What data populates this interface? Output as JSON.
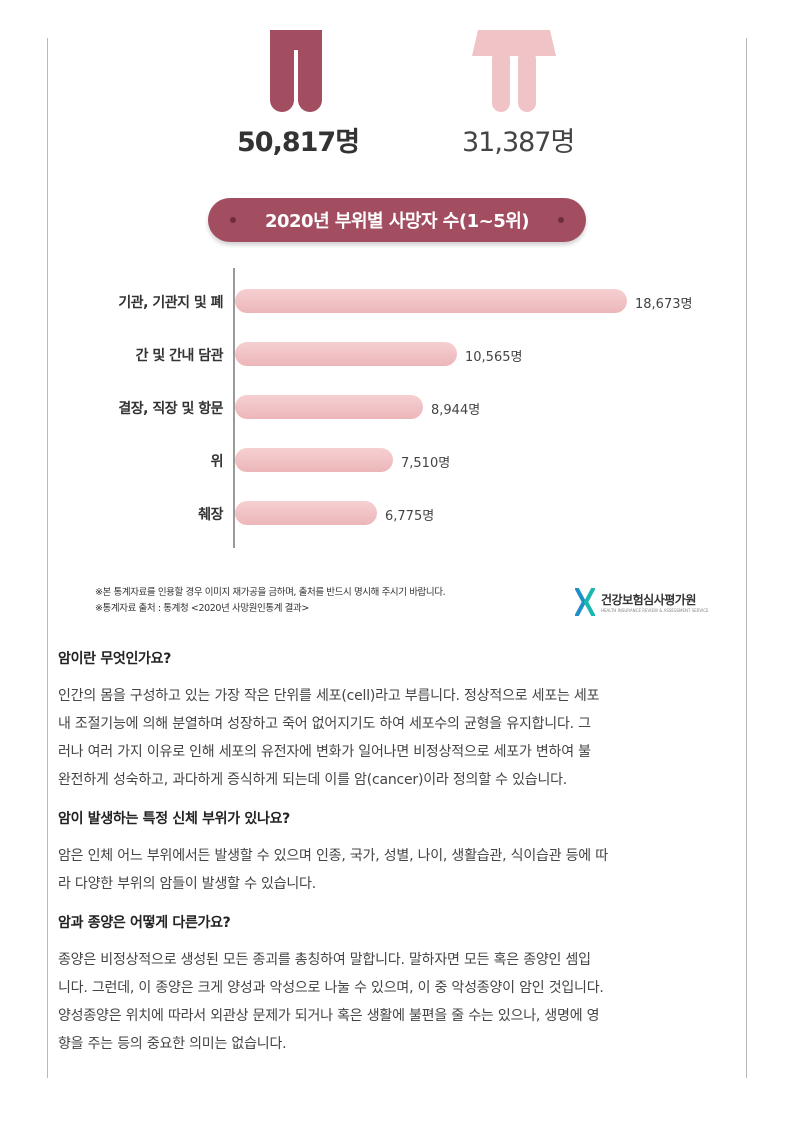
{
  "figure": {
    "male_count": "50,817명",
    "female_count": "31,387명",
    "title": "2020년 부위별 사망자 수(1~5위)",
    "colors": {
      "male": "#a24d60",
      "female": "#f0c3c7",
      "bar": "#efbfc2"
    },
    "notes": [
      "※본 통계자료를 인용할 경우 이미지 재가공을 금하며, 출처를 반드시 명시해 주시기 바랍니다.",
      "※통계자료 출처 : 통계청 <2020년 사망원인통계 결과>"
    ],
    "logo": {
      "name": "건강보험심사평가원",
      "sub": "HEALTH INSURANCE REVIEW & ASSESSMENT SERVICE"
    }
  },
  "chart_data": {
    "type": "bar",
    "orientation": "horizontal",
    "title": "2020년 부위별 사망자 수(1~5위)",
    "categories": [
      "기관, 기관지 및 폐",
      "간 및 간내 담관",
      "결장, 직장 및 항문",
      "위",
      "췌장"
    ],
    "values": [
      18673,
      10565,
      8944,
      7510,
      6775
    ],
    "value_labels": [
      "18,673명",
      "10,565명",
      "8,944명",
      "7,510명",
      "6,775명"
    ],
    "xlim": [
      0,
      20000
    ],
    "grid": false
  },
  "sections": [
    {
      "heading": "암이란 무엇인가요?",
      "lines": [
        "인간의 몸을 구성하고 있는 가장 작은 단위를 세포(cell)라고 부릅니다. 정상적으로 세포는 세포",
        "내 조절기능에 의해 분열하며 성장하고 죽어 없어지기도 하여 세포수의 균형을 유지합니다. 그",
        "러나 여러 가지 이유로 인해 세포의 유전자에 변화가 일어나면 비정상적으로 세포가 변하여 불",
        "완전하게 성숙하고, 과다하게 증식하게 되는데 이를 암(cancer)이라 정의할 수 있습니다."
      ]
    },
    {
      "heading": "암이 발생하는 특정 신체 부위가 있나요?",
      "lines": [
        "암은 인체 어느 부위에서든 발생할 수 있으며 인종, 국가, 성별, 나이, 생활습관, 식이습관 등에 따",
        "라 다양한 부위의 암들이 발생할 수 있습니다."
      ]
    },
    {
      "heading": "암과 종양은 어떻게 다른가요?",
      "lines": [
        "종양은 비정상적으로 생성된 모든 종괴를 총칭하여 말합니다. 말하자면 모든 혹은 종양인 셈입",
        "니다. 그런데, 이 종양은 크게 양성과 악성으로 나눌 수 있으며, 이 중 악성종양이 암인 것입니다.",
        "양성종양은 위치에 따라서 외관상 문제가 되거나 혹은 생활에 불편을 줄 수는 있으나, 생명에 영",
        "향을 주는 등의 중요한 의미는 없습니다."
      ]
    }
  ]
}
